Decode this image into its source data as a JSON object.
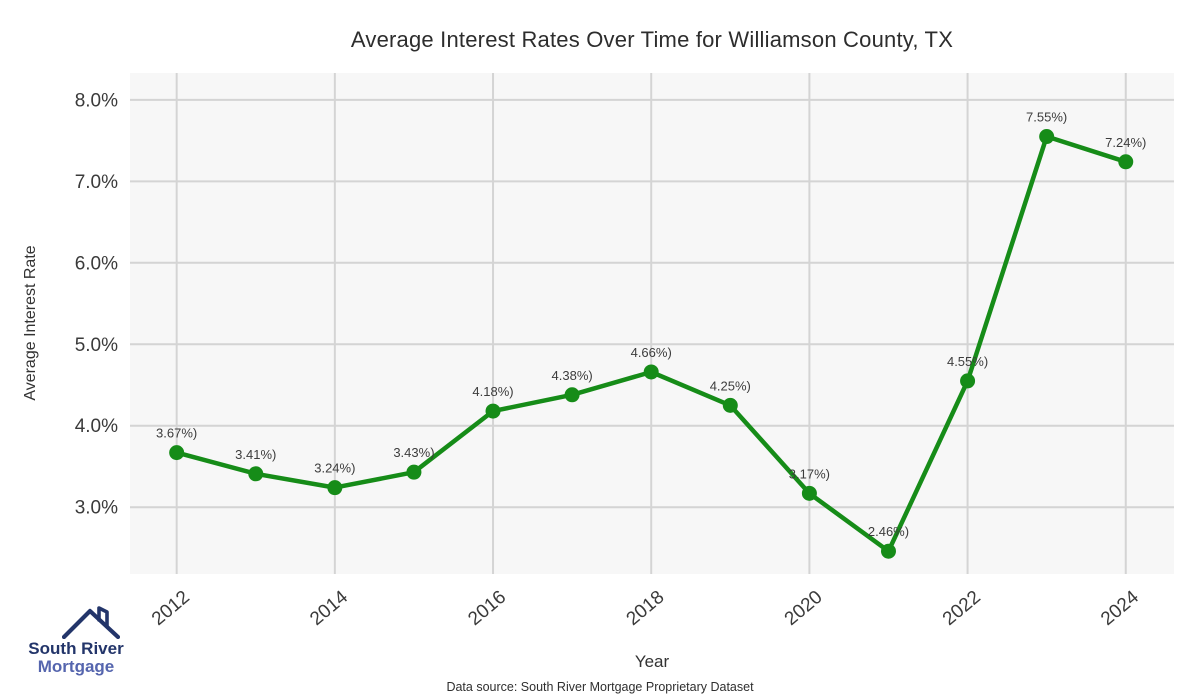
{
  "footer": {
    "text": "Data source: South River Mortgage Proprietary Dataset"
  },
  "logo": {
    "icon": "house-roof-icon",
    "line1": "South River",
    "line2": "Mortgage",
    "color_primary": "#23356a",
    "color_secondary": "#5565ae"
  },
  "chart_data": {
    "type": "line",
    "title": "Average Interest Rates Over Time for Williamson County, TX",
    "xlabel": "Year",
    "ylabel": "Average Interest Rate",
    "x": [
      2012,
      2013,
      2014,
      2015,
      2016,
      2017,
      2018,
      2019,
      2020,
      2021,
      2022,
      2023,
      2024
    ],
    "values": [
      3.67,
      3.41,
      3.24,
      3.43,
      4.18,
      4.38,
      4.66,
      4.25,
      3.17,
      2.46,
      4.55,
      7.55,
      7.24
    ],
    "point_labels": [
      "3.67%)",
      "3.41%)",
      "3.24%)",
      "3.43%)",
      "4.18%)",
      "4.38%)",
      "4.66%)",
      "4.25%)",
      "3.17%)",
      "2.46%)",
      "4.55%)",
      "7.55%)",
      "7.24%)"
    ],
    "x_ticks": [
      2012,
      2014,
      2016,
      2018,
      2020,
      2022,
      2024
    ],
    "y_ticks": [
      3,
      4,
      5,
      6,
      7,
      8
    ],
    "y_tick_labels": [
      "3.0%",
      "4.0%",
      "5.0%",
      "6.0%",
      "7.0%",
      "8.0%"
    ],
    "xlim": [
      2011.41,
      2024.61
    ],
    "ylim": [
      2.18,
      8.33
    ],
    "grid": true,
    "legend": "none",
    "colors": {
      "line": "#168c18",
      "marker": "#168c18",
      "panel_bg": "#f7f7f7",
      "grid": "#d4d4d4",
      "tick_text": "#3a3a3a",
      "title_text": "#2d2d2d",
      "label_text": "#3c3c3c"
    }
  }
}
